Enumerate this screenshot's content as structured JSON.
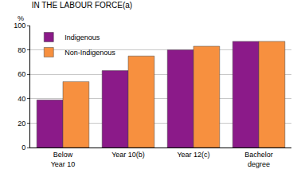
{
  "chart_data": {
    "type": "bar",
    "title": "IN THE LABOUR FORCE(a)",
    "y_label": "%",
    "categories": [
      "Below Year 10",
      "Year 10(b)",
      "Year 12(c)",
      "Bachelor degree"
    ],
    "series": [
      {
        "name": "Indigenous",
        "color": "#8b1a89",
        "values": [
          39,
          63,
          80,
          87
        ]
      },
      {
        "name": "Non-Indigenous",
        "color": "#f7903f",
        "values": [
          54,
          75,
          83,
          87
        ]
      }
    ],
    "ylim": [
      0,
      100
    ],
    "yticks": [
      0,
      20,
      40,
      60,
      80,
      100
    ],
    "grid": true,
    "legend": "top-left"
  }
}
